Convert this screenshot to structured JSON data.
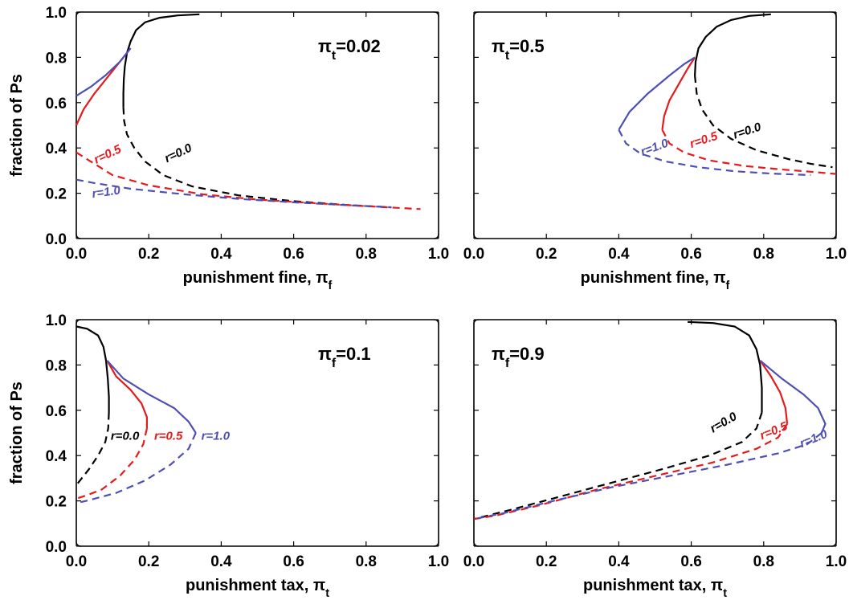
{
  "chart_data": [
    {
      "type": "line",
      "panel_label": "πt=0.02",
      "xlabel": "punishment fine, πf",
      "ylabel": "fraction of Ps",
      "xlim": [
        0,
        1
      ],
      "ylim": [
        0,
        1
      ],
      "xticks": [
        "0.0",
        "0.2",
        "0.4",
        "0.6",
        "0.8",
        "1.0"
      ],
      "yticks": [
        "0.0",
        "0.2",
        "0.4",
        "0.6",
        "0.8",
        "1.0"
      ],
      "series": [
        {
          "name": "r=0.0",
          "color": "#000000",
          "stable": [
            [
              0.13,
              0.58
            ],
            [
              0.13,
              0.64
            ],
            [
              0.131,
              0.7
            ],
            [
              0.134,
              0.76
            ],
            [
              0.14,
              0.82
            ],
            [
              0.15,
              0.87
            ],
            [
              0.165,
              0.92
            ],
            [
              0.19,
              0.955
            ],
            [
              0.23,
              0.975
            ],
            [
              0.28,
              0.985
            ],
            [
              0.34,
              0.99
            ]
          ],
          "unstable": [
            [
              0.13,
              0.58
            ],
            [
              0.132,
              0.52
            ],
            [
              0.14,
              0.46
            ],
            [
              0.16,
              0.4
            ],
            [
              0.19,
              0.34
            ],
            [
              0.24,
              0.28
            ],
            [
              0.32,
              0.23
            ],
            [
              0.45,
              0.19
            ],
            [
              0.6,
              0.165
            ],
            [
              0.75,
              0.148
            ],
            [
              0.87,
              0.138
            ]
          ]
        },
        {
          "name": "r=0.5",
          "color": "#e41a1c",
          "stable": [
            [
              0.0,
              0.5
            ],
            [
              0.02,
              0.57
            ],
            [
              0.05,
              0.64
            ],
            [
              0.08,
              0.7
            ],
            [
              0.11,
              0.76
            ],
            [
              0.13,
              0.8
            ],
            [
              0.15,
              0.84
            ]
          ],
          "unstable": [
            [
              0.0,
              0.38
            ],
            [
              0.05,
              0.33
            ],
            [
              0.1,
              0.28
            ],
            [
              0.2,
              0.235
            ],
            [
              0.35,
              0.195
            ],
            [
              0.5,
              0.172
            ],
            [
              0.65,
              0.157
            ],
            [
              0.8,
              0.143
            ],
            [
              0.95,
              0.13
            ]
          ]
        },
        {
          "name": "r=1.0",
          "color": "#4f4fb3",
          "stable": [
            [
              0.0,
              0.63
            ],
            [
              0.04,
              0.67
            ],
            [
              0.08,
              0.72
            ],
            [
              0.12,
              0.78
            ],
            [
              0.15,
              0.84
            ]
          ],
          "unstable": [
            [
              0.0,
              0.26
            ],
            [
              0.05,
              0.245
            ],
            [
              0.15,
              0.22
            ],
            [
              0.3,
              0.195
            ],
            [
              0.45,
              0.175
            ],
            [
              0.6,
              0.16
            ],
            [
              0.75,
              0.147
            ],
            [
              0.87,
              0.138
            ]
          ]
        }
      ],
      "labels": [
        {
          "text": "r=0.0",
          "color": "#000000",
          "x": 0.25,
          "y": 0.335,
          "angle": -25
        },
        {
          "text": "r=0.5",
          "color": "#e41a1c",
          "x": 0.055,
          "y": 0.33,
          "angle": -25
        },
        {
          "text": "r=1.0",
          "color": "#4f4fb3",
          "x": 0.045,
          "y": 0.18,
          "angle": -8
        }
      ]
    },
    {
      "type": "line",
      "panel_label": "πt=0.5",
      "xlabel": "punishment fine, πf",
      "ylabel": "",
      "xlim": [
        0,
        1
      ],
      "ylim": [
        0,
        1
      ],
      "xticks": [
        "0.0",
        "0.2",
        "0.4",
        "0.6",
        "0.8",
        "1.0"
      ],
      "yticks": [],
      "series": [
        {
          "name": "r=0.0",
          "color": "#000000",
          "stable": [
            [
              0.61,
              0.72
            ],
            [
              0.612,
              0.78
            ],
            [
              0.62,
              0.84
            ],
            [
              0.64,
              0.89
            ],
            [
              0.67,
              0.935
            ],
            [
              0.71,
              0.965
            ],
            [
              0.76,
              0.983
            ],
            [
              0.82,
              0.99
            ]
          ],
          "unstable": [
            [
              0.61,
              0.72
            ],
            [
              0.615,
              0.64
            ],
            [
              0.63,
              0.57
            ],
            [
              0.66,
              0.5
            ],
            [
              0.71,
              0.44
            ],
            [
              0.78,
              0.39
            ],
            [
              0.87,
              0.35
            ],
            [
              0.93,
              0.33
            ],
            [
              0.99,
              0.315
            ]
          ]
        },
        {
          "name": "r=0.5",
          "color": "#e41a1c",
          "stable": [
            [
              0.52,
              0.48
            ],
            [
              0.525,
              0.54
            ],
            [
              0.54,
              0.61
            ],
            [
              0.565,
              0.68
            ],
            [
              0.59,
              0.75
            ],
            [
              0.61,
              0.8
            ]
          ],
          "unstable": [
            [
              0.52,
              0.48
            ],
            [
              0.54,
              0.42
            ],
            [
              0.58,
              0.38
            ],
            [
              0.65,
              0.345
            ],
            [
              0.75,
              0.32
            ],
            [
              0.85,
              0.305
            ],
            [
              0.93,
              0.295
            ],
            [
              1.0,
              0.285
            ]
          ]
        },
        {
          "name": "r=1.0",
          "color": "#4f4fb3",
          "stable": [
            [
              0.4,
              0.48
            ],
            [
              0.43,
              0.56
            ],
            [
              0.48,
              0.64
            ],
            [
              0.54,
              0.72
            ],
            [
              0.58,
              0.77
            ],
            [
              0.61,
              0.8
            ]
          ],
          "unstable": [
            [
              0.4,
              0.48
            ],
            [
              0.42,
              0.42
            ],
            [
              0.46,
              0.375
            ],
            [
              0.53,
              0.34
            ],
            [
              0.62,
              0.315
            ],
            [
              0.72,
              0.297
            ],
            [
              0.82,
              0.287
            ],
            [
              0.93,
              0.28
            ]
          ]
        }
      ],
      "labels": [
        {
          "text": "r=0.0",
          "color": "#000000",
          "x": 0.72,
          "y": 0.44,
          "angle": -18
        },
        {
          "text": "r=0.5",
          "color": "#e41a1c",
          "x": 0.6,
          "y": 0.4,
          "angle": -18
        },
        {
          "text": "r=1.0",
          "color": "#4f4fb3",
          "x": 0.465,
          "y": 0.365,
          "angle": -20
        }
      ]
    },
    {
      "type": "line",
      "panel_label": "πf=0.1",
      "xlabel": "punishment tax, πt",
      "ylabel": "fraction of Ps",
      "xlim": [
        0,
        1
      ],
      "ylim": [
        0,
        1
      ],
      "xticks": [
        "0.0",
        "0.2",
        "0.4",
        "0.6",
        "0.8",
        "1.0"
      ],
      "yticks": [
        "0.0",
        "0.2",
        "0.4",
        "0.6",
        "0.8",
        "1.0"
      ],
      "series": [
        {
          "name": "r=0.0",
          "color": "#000000",
          "stable": [
            [
              0.0,
              0.97
            ],
            [
              0.03,
              0.96
            ],
            [
              0.06,
              0.93
            ],
            [
              0.075,
              0.88
            ],
            [
              0.082,
              0.82
            ],
            [
              0.087,
              0.74
            ],
            [
              0.09,
              0.66
            ],
            [
              0.09,
              0.59
            ]
          ],
          "unstable": [
            [
              0.09,
              0.59
            ],
            [
              0.088,
              0.52
            ],
            [
              0.08,
              0.46
            ],
            [
              0.06,
              0.4
            ],
            [
              0.035,
              0.34
            ],
            [
              0.015,
              0.3
            ],
            [
              0.0,
              0.27
            ]
          ]
        },
        {
          "name": "r=0.5",
          "color": "#e41a1c",
          "stable": [
            [
              0.085,
              0.82
            ],
            [
              0.11,
              0.75
            ],
            [
              0.15,
              0.69
            ],
            [
              0.18,
              0.63
            ],
            [
              0.195,
              0.57
            ],
            [
              0.195,
              0.52
            ]
          ],
          "unstable": [
            [
              0.195,
              0.52
            ],
            [
              0.185,
              0.45
            ],
            [
              0.16,
              0.38
            ],
            [
              0.12,
              0.31
            ],
            [
              0.07,
              0.25
            ],
            [
              0.03,
              0.225
            ],
            [
              0.0,
              0.21
            ]
          ]
        },
        {
          "name": "r=1.0",
          "color": "#4f4fb3",
          "stable": [
            [
              0.085,
              0.82
            ],
            [
              0.13,
              0.74
            ],
            [
              0.2,
              0.67
            ],
            [
              0.27,
              0.61
            ],
            [
              0.31,
              0.55
            ],
            [
              0.33,
              0.5
            ]
          ],
          "unstable": [
            [
              0.33,
              0.5
            ],
            [
              0.31,
              0.43
            ],
            [
              0.26,
              0.36
            ],
            [
              0.19,
              0.29
            ],
            [
              0.11,
              0.235
            ],
            [
              0.04,
              0.205
            ],
            [
              0.0,
              0.19
            ]
          ]
        }
      ],
      "labels": [
        {
          "text": "r=0.0",
          "color": "#000000",
          "x": 0.095,
          "y": 0.47,
          "angle": 0
        },
        {
          "text": "r=0.5",
          "color": "#e41a1c",
          "x": 0.215,
          "y": 0.47,
          "angle": 0
        },
        {
          "text": "r=1.0",
          "color": "#4f4fb3",
          "x": 0.345,
          "y": 0.47,
          "angle": 0
        }
      ]
    },
    {
      "type": "line",
      "panel_label": "πf=0.9",
      "xlabel": "punishment tax, πt",
      "ylabel": "",
      "xlim": [
        0,
        1
      ],
      "ylim": [
        0,
        1
      ],
      "xticks": [
        "0.0",
        "0.2",
        "0.4",
        "0.6",
        "0.8",
        "1.0"
      ],
      "yticks": [],
      "series": [
        {
          "name": "r=0.0",
          "color": "#000000",
          "stable": [
            [
              0.59,
              0.99
            ],
            [
              0.66,
              0.985
            ],
            [
              0.72,
              0.97
            ],
            [
              0.76,
              0.93
            ],
            [
              0.78,
              0.87
            ],
            [
              0.79,
              0.8
            ],
            [
              0.795,
              0.7
            ],
            [
              0.795,
              0.59
            ]
          ],
          "unstable": [
            [
              0.795,
              0.59
            ],
            [
              0.78,
              0.52
            ],
            [
              0.74,
              0.46
            ],
            [
              0.65,
              0.4
            ],
            [
              0.52,
              0.34
            ],
            [
              0.38,
              0.28
            ],
            [
              0.24,
              0.22
            ],
            [
              0.1,
              0.16
            ],
            [
              0.0,
              0.12
            ]
          ]
        },
        {
          "name": "r=0.5",
          "color": "#e41a1c",
          "stable": [
            [
              0.79,
              0.82
            ],
            [
              0.82,
              0.75
            ],
            [
              0.845,
              0.68
            ],
            [
              0.86,
              0.61
            ],
            [
              0.865,
              0.54
            ]
          ],
          "unstable": [
            [
              0.865,
              0.54
            ],
            [
              0.84,
              0.48
            ],
            [
              0.78,
              0.43
            ],
            [
              0.66,
              0.37
            ],
            [
              0.5,
              0.31
            ],
            [
              0.34,
              0.25
            ],
            [
              0.18,
              0.18
            ],
            [
              0.06,
              0.135
            ],
            [
              0.0,
              0.12
            ]
          ]
        },
        {
          "name": "r=1.0",
          "color": "#4f4fb3",
          "stable": [
            [
              0.79,
              0.82
            ],
            [
              0.85,
              0.74
            ],
            [
              0.91,
              0.67
            ],
            [
              0.95,
              0.61
            ],
            [
              0.97,
              0.54
            ],
            [
              0.96,
              0.5
            ]
          ],
          "unstable": [
            [
              0.96,
              0.5
            ],
            [
              0.92,
              0.45
            ],
            [
              0.84,
              0.41
            ],
            [
              0.7,
              0.36
            ],
            [
              0.54,
              0.31
            ],
            [
              0.38,
              0.26
            ],
            [
              0.22,
              0.2
            ],
            [
              0.08,
              0.145
            ],
            [
              0.0,
              0.12
            ]
          ]
        }
      ],
      "labels": [
        {
          "text": "r=0.0",
          "color": "#000000",
          "x": 0.66,
          "y": 0.5,
          "angle": -30
        },
        {
          "text": "r=0.5",
          "color": "#e41a1c",
          "x": 0.795,
          "y": 0.47,
          "angle": -22
        },
        {
          "text": "r=1.0",
          "color": "#4f4fb3",
          "x": 0.905,
          "y": 0.435,
          "angle": -22
        }
      ]
    }
  ]
}
